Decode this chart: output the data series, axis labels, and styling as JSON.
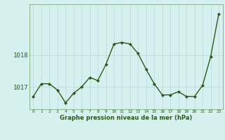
{
  "x": [
    0,
    1,
    2,
    3,
    4,
    5,
    6,
    7,
    8,
    9,
    10,
    11,
    12,
    13,
    14,
    15,
    16,
    17,
    18,
    19,
    20,
    21,
    22,
    23
  ],
  "y": [
    1016.7,
    1017.1,
    1017.1,
    1016.9,
    1016.5,
    1016.8,
    1017.0,
    1017.3,
    1017.2,
    1017.7,
    1018.35,
    1018.4,
    1018.35,
    1018.05,
    1017.55,
    1017.1,
    1016.75,
    1016.75,
    1016.85,
    1016.7,
    1016.7,
    1017.05,
    1017.95,
    1019.3
  ],
  "line_color": "#2d5a1b",
  "marker_color": "#2d5a1b",
  "bg_color": "#d6f0f0",
  "grid_color": "#c0dede",
  "axis_label_color": "#2d5a1b",
  "title": "Graphe pression niveau de la mer (hPa)",
  "ylabel_ticks": [
    1017,
    1018
  ],
  "ylim": [
    1016.3,
    1019.6
  ],
  "xlim": [
    -0.5,
    23.5
  ]
}
